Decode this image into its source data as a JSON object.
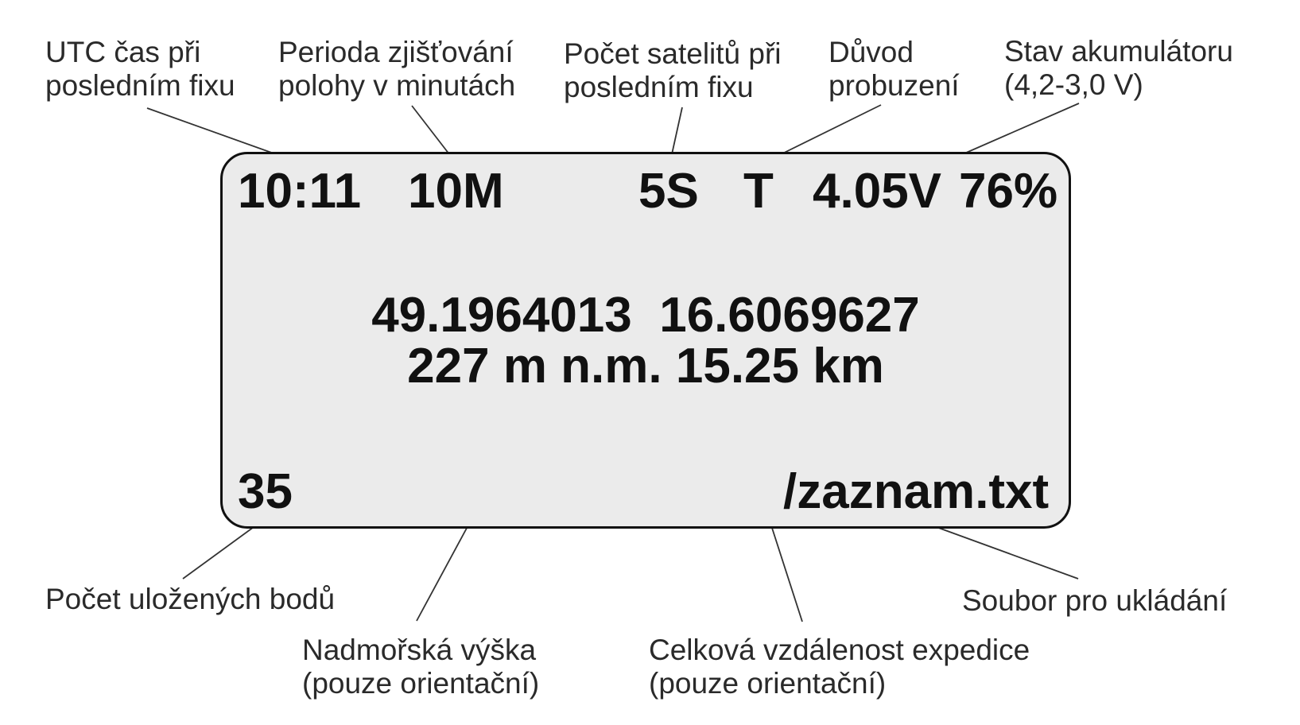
{
  "display": {
    "time": "10:11",
    "period": "10M",
    "satellites": "5S",
    "wake_reason": "T",
    "battery_voltage": "4.05V",
    "battery_percent": "76%",
    "coordinates": "49.1964013  16.6069627",
    "altitude_distance": "227 m n.m. 15.25 km",
    "saved_points": "35",
    "file": "/zaznam.txt"
  },
  "labels": {
    "utc_time": [
      "UTC čas při",
      "posledním fixu"
    ],
    "period": [
      "Perioda zjišťování",
      "polohy v minutách"
    ],
    "satellites": [
      "Počet satelitů při",
      "posledním fixu"
    ],
    "wake_reason": [
      "Důvod",
      "probuzení"
    ],
    "battery": [
      "Stav akumulátoru",
      "(4,2-3,0 V)"
    ],
    "saved_points": [
      "Počet uložených bodů"
    ],
    "altitude": [
      "Nadmořská výška",
      "(pouze orientační)"
    ],
    "distance": [
      "Celková vzdálenost expedice",
      "(pouze orientační)"
    ],
    "file": [
      "Soubor pro ukládání"
    ]
  },
  "colors": {
    "display_background": "#ebebeb",
    "display_border": "#111111",
    "text": "#111111",
    "label_text": "#2a2a2a",
    "leader_line": "#333333"
  }
}
